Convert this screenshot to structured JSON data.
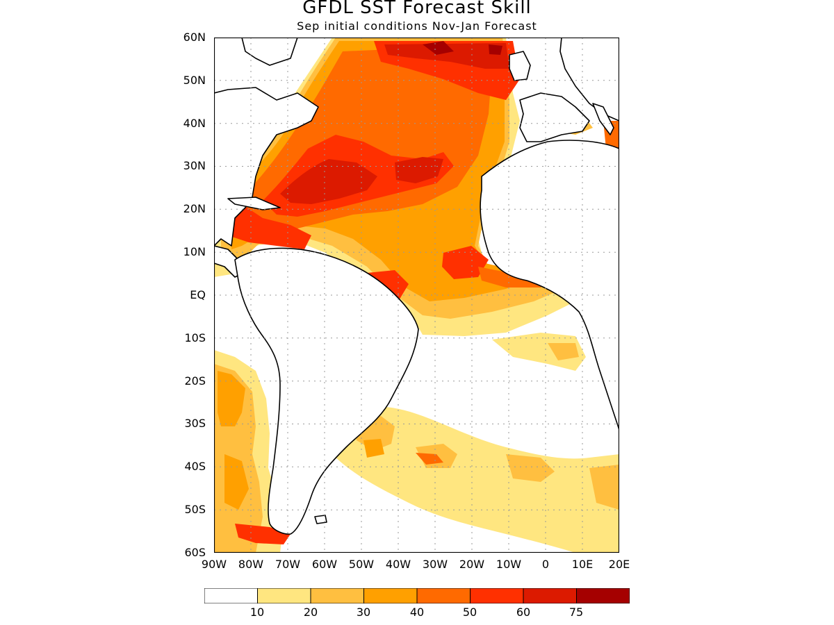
{
  "title": "GFDL SST Forecast Skill",
  "subtitle": "Sep initial conditions  Nov-Jan Forecast",
  "map": {
    "lon_range": [
      -90,
      20
    ],
    "lat_range": [
      -60,
      60
    ],
    "lat_labels": [
      "60N",
      "50N",
      "40N",
      "30N",
      "20N",
      "10N",
      "EQ",
      "10S",
      "20S",
      "30S",
      "40S",
      "50S",
      "60S"
    ],
    "lon_labels": [
      "90W",
      "80W",
      "70W",
      "60W",
      "50W",
      "40W",
      "30W",
      "20W",
      "10W",
      "0",
      "10E",
      "20E"
    ],
    "grid": true
  },
  "legend": {
    "bins": [
      {
        "color": "#ffffff"
      },
      {
        "color": "#ffe680",
        "label": "10"
      },
      {
        "color": "#ffbf40",
        "label": "20"
      },
      {
        "color": "#ffa000",
        "label": "30"
      },
      {
        "color": "#ff6a00",
        "label": "40"
      },
      {
        "color": "#ff3000",
        "label": "50"
      },
      {
        "color": "#dc1a00",
        "label": "60"
      },
      {
        "color": "#a50000",
        "label": "75"
      }
    ]
  }
}
